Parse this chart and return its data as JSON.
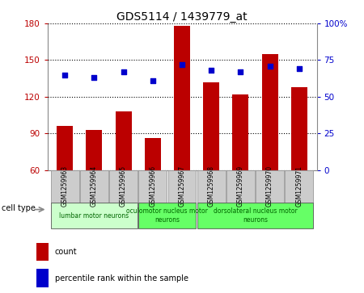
{
  "title": "GDS5114 / 1439779_at",
  "samples": [
    "GSM1259963",
    "GSM1259964",
    "GSM1259965",
    "GSM1259966",
    "GSM1259967",
    "GSM1259968",
    "GSM1259969",
    "GSM1259970",
    "GSM1259971"
  ],
  "counts": [
    96,
    93,
    108,
    86,
    178,
    132,
    122,
    155,
    128
  ],
  "percentiles": [
    65,
    63,
    67,
    61,
    72,
    68,
    67,
    71,
    69
  ],
  "ylim_left": [
    60,
    180
  ],
  "ylim_right": [
    0,
    100
  ],
  "yticks_left": [
    60,
    90,
    120,
    150,
    180
  ],
  "yticks_right": [
    0,
    25,
    50,
    75,
    100
  ],
  "ytick_labels_left": [
    "60",
    "90",
    "120",
    "150",
    "180"
  ],
  "ytick_labels_right": [
    "0",
    "25",
    "50",
    "75",
    "100%"
  ],
  "bar_color": "#bb0000",
  "dot_color": "#0000cc",
  "cell_type_groups": [
    {
      "label": "lumbar motor neurons",
      "start": 0,
      "end": 3,
      "color": "#ccffcc"
    },
    {
      "label": "oculomotor nucleus motor\nneurons",
      "start": 3,
      "end": 5,
      "color": "#66ff66"
    },
    {
      "label": "dorsolateral nucleus motor\nneurons",
      "start": 5,
      "end": 9,
      "color": "#66ff66"
    }
  ],
  "cell_type_label": "cell type",
  "legend_count_label": "count",
  "legend_pct_label": "percentile rank within the sample",
  "bg_color": "#ffffff",
  "sample_bg_color": "#cccccc",
  "sample_border_color": "#999999"
}
